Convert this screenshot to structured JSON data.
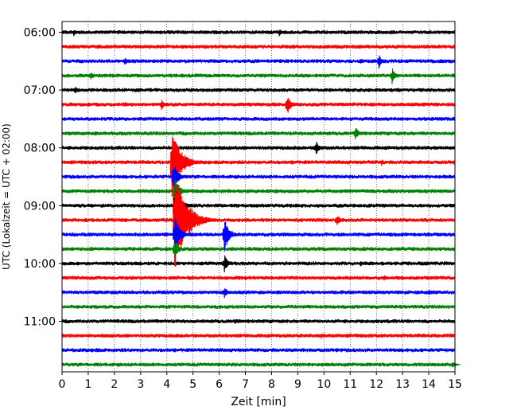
{
  "chart_data": {
    "type": "line",
    "title": "",
    "xlabel": "Zeit  [min]",
    "ylabel": "UTC (Lokalzeit = UTC + 02:00)",
    "xlim": [
      0,
      15
    ],
    "x_ticks": [
      0,
      1,
      2,
      3,
      4,
      5,
      6,
      7,
      8,
      9,
      10,
      11,
      12,
      13,
      14,
      15
    ],
    "x_tick_labels": [
      "0",
      "1",
      "2",
      "3",
      "4",
      "5",
      "6",
      "7",
      "8",
      "9",
      "10",
      "11",
      "12",
      "13",
      "14",
      "15"
    ],
    "y_tick_labels": [
      "06:00",
      "07:00",
      "08:00",
      "09:00",
      "10:00",
      "11:00"
    ],
    "trace_minutes_per_line": 15,
    "first_trace_time_utc": "06:00",
    "trace_count": 24,
    "trace_colors": [
      "#000000",
      "#ff0000",
      "#0000ff",
      "#008000"
    ],
    "grid": "vertical dotted at each minute",
    "events": [
      {
        "trace": 0,
        "minute": 0.45,
        "amplitude": 0.5
      },
      {
        "trace": 0,
        "minute": 8.3,
        "amplitude": 0.55
      },
      {
        "trace": 2,
        "minute": 2.4,
        "amplitude": 0.7
      },
      {
        "trace": 2,
        "minute": 11.4,
        "amplitude": 0.5
      },
      {
        "trace": 2,
        "minute": 12.1,
        "amplitude": 1.0
      },
      {
        "trace": 3,
        "minute": 1.1,
        "amplitude": 0.7
      },
      {
        "trace": 3,
        "minute": 12.6,
        "amplitude": 1.1
      },
      {
        "trace": 4,
        "minute": 0.5,
        "amplitude": 0.6
      },
      {
        "trace": 5,
        "minute": 2.4,
        "amplitude": 0.4
      },
      {
        "trace": 5,
        "minute": 3.8,
        "amplitude": 0.8
      },
      {
        "trace": 5,
        "minute": 8.6,
        "amplitude": 1.4
      },
      {
        "trace": 7,
        "minute": 11.2,
        "amplitude": 1.0
      },
      {
        "trace": 8,
        "minute": 9.7,
        "amplitude": 1.0
      },
      {
        "trace": 9,
        "minute": 12.2,
        "amplitude": 0.5
      },
      {
        "trace": 9,
        "minute": 4.2,
        "amplitude": 4.5
      },
      {
        "trace": 10,
        "minute": 4.25,
        "amplitude": 2.0
      },
      {
        "trace": 11,
        "minute": 4.3,
        "amplitude": 2.0
      },
      {
        "trace": 12,
        "minute": 4.3,
        "amplitude": 3.0
      },
      {
        "trace": 13,
        "minute": 4.3,
        "amplitude": 6.5
      },
      {
        "trace": 13,
        "minute": 10.5,
        "amplitude": 0.9
      },
      {
        "trace": 14,
        "minute": 4.3,
        "amplitude": 2.5
      },
      {
        "trace": 14,
        "minute": 6.2,
        "amplitude": 2.2
      },
      {
        "trace": 15,
        "minute": 4.3,
        "amplitude": 1.5
      },
      {
        "trace": 16,
        "minute": 6.2,
        "amplitude": 1.2
      },
      {
        "trace": 16,
        "minute": 11.4,
        "amplitude": 0.4
      },
      {
        "trace": 17,
        "minute": 12.3,
        "amplitude": 0.4
      },
      {
        "trace": 18,
        "minute": 6.2,
        "amplitude": 0.8
      },
      {
        "trace": 18,
        "minute": 14.0,
        "amplitude": 0.4
      },
      {
        "trace": 20,
        "minute": 6.6,
        "amplitude": 0.4
      },
      {
        "trace": 21,
        "minute": 9.9,
        "amplitude": 0.4
      },
      {
        "trace": 22,
        "minute": 1.3,
        "amplitude": 0.4
      },
      {
        "trace": 23,
        "minute": 14.9,
        "amplitude": 0.5
      }
    ]
  }
}
